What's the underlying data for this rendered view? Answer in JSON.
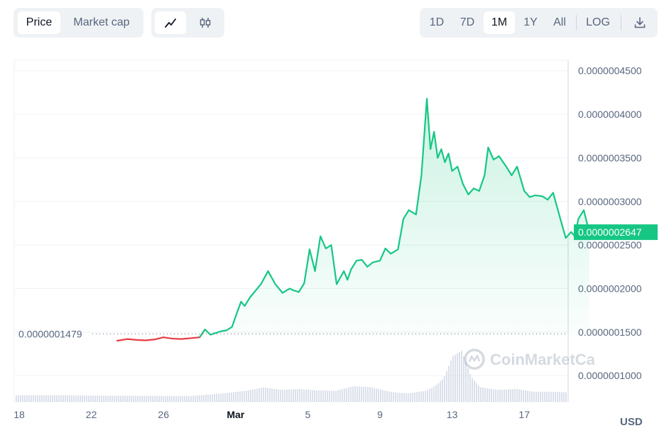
{
  "toolbar": {
    "metric_tabs": [
      "Price",
      "Market cap"
    ],
    "active_metric": "Price",
    "chart_style_icons": [
      "line-chart-icon",
      "candlestick-icon"
    ],
    "active_style": "line-chart-icon",
    "range_tabs": [
      "1D",
      "7D",
      "1M",
      "1Y",
      "All"
    ],
    "active_range": "1M",
    "scale_label": "LOG",
    "download_icon": "download-icon"
  },
  "watermark": "CoinMarketCap",
  "colors": {
    "up": "#16c784",
    "down": "#ea3943",
    "price_badge_bg": "#16c784",
    "grid": "#eff2f5",
    "volume": "#cfd6e4"
  },
  "chart_data": {
    "type": "line",
    "x_ticks": [
      "18",
      "22",
      "26",
      "Mar",
      "5",
      "9",
      "13",
      "17"
    ],
    "y_ticks": [
      "0.0000004500",
      "0.0000004000",
      "0.0000003500",
      "0.0000003000",
      "0.0000002500",
      "0.0000002000",
      "0.0000001500",
      "0.0000001000"
    ],
    "ylim": [
      7e-08,
      4.62e-07
    ],
    "unit": "USD",
    "open_price_label": "0.0000001479",
    "current_price_label": "0.0000002647",
    "open_price": 1.479e-07,
    "current_price": 2.647e-07,
    "series": [
      {
        "x": [
          22.4,
          23.0,
          23.5,
          24.0,
          24.5,
          25.0,
          25.5,
          26.0,
          26.5,
          27.0,
          27.3,
          27.6,
          27.9,
          28.2,
          28.5,
          28.8,
          29.0,
          29.3,
          29.5,
          29.8,
          30.0,
          30.4,
          30.8,
          31.2,
          31.6,
          32.0,
          32.2,
          32.5,
          32.8,
          33.1,
          33.4,
          33.7,
          34.0,
          34.3,
          34.6,
          35.0,
          35.2,
          35.4,
          35.7,
          36.0,
          36.3,
          36.6,
          37.0,
          37.3,
          37.6,
          38.0,
          38.3,
          38.6,
          39.0,
          39.3,
          39.6,
          39.8,
          40.0,
          40.2,
          40.4,
          40.6,
          40.8,
          41.0,
          41.3,
          41.6,
          41.9,
          42.2,
          42.5,
          42.8,
          43.0,
          43.3,
          43.6,
          44.0,
          44.3,
          44.6,
          45.0,
          45.3,
          45.6,
          46.0,
          46.3,
          46.6,
          47.0,
          47.3,
          47.6,
          47.8,
          48.0,
          48.3,
          48.6
        ],
        "y": [
          1.4e-07,
          1.42e-07,
          1.41e-07,
          1.405e-07,
          1.415e-07,
          1.44e-07,
          1.425e-07,
          1.42e-07,
          1.43e-07,
          1.44e-07,
          1.53e-07,
          1.47e-07,
          1.49e-07,
          1.51e-07,
          1.52e-07,
          1.56e-07,
          1.68e-07,
          1.85e-07,
          1.8e-07,
          1.9e-07,
          1.95e-07,
          2.05e-07,
          2.2e-07,
          2.05e-07,
          1.95e-07,
          2e-07,
          1.98e-07,
          1.96e-07,
          2.06e-07,
          2.45e-07,
          2.2e-07,
          2.6e-07,
          2.46e-07,
          2.5e-07,
          2.05e-07,
          2.2e-07,
          2.1e-07,
          2.22e-07,
          2.32e-07,
          2.33e-07,
          2.25e-07,
          2.3e-07,
          2.32e-07,
          2.46e-07,
          2.4e-07,
          2.45e-07,
          2.8e-07,
          2.9e-07,
          2.85e-07,
          3.3e-07,
          4.18e-07,
          3.6e-07,
          3.8e-07,
          3.5e-07,
          3.6e-07,
          3.45e-07,
          3.55e-07,
          3.35e-07,
          3.4e-07,
          3.2e-07,
          3.08e-07,
          3.15e-07,
          3.12e-07,
          3.3e-07,
          3.62e-07,
          3.48e-07,
          3.52e-07,
          3.4e-07,
          3.3e-07,
          3.4e-07,
          3.12e-07,
          3.05e-07,
          3.07e-07,
          3.06e-07,
          3.02e-07,
          3.1e-07,
          2.8e-07,
          2.58e-07,
          2.65e-07,
          2.6e-07,
          2.8e-07,
          2.9e-07,
          2.647e-07
        ]
      }
    ],
    "volume_x": [
      17.0,
      19.0,
      21.0,
      23.0,
      25.0,
      26.5,
      27.5,
      28.5,
      29.5,
      30.5,
      31.5,
      32.5,
      33.5,
      34.5,
      35.5,
      36.5,
      37.5,
      38.5,
      39.5,
      40.0,
      40.5,
      41.0,
      41.5,
      42.0,
      42.5,
      43.5,
      44.5,
      45.5,
      46.5,
      47.5,
      48.6
    ],
    "volume": [
      0.35,
      0.36,
      0.34,
      0.33,
      0.32,
      0.32,
      0.4,
      0.48,
      0.6,
      0.78,
      0.65,
      0.7,
      0.62,
      0.6,
      0.85,
      0.8,
      0.55,
      0.45,
      0.6,
      0.85,
      1.3,
      2.5,
      2.8,
      1.4,
      0.8,
      0.65,
      0.7,
      0.55,
      0.55,
      0.52,
      0.45
    ]
  }
}
